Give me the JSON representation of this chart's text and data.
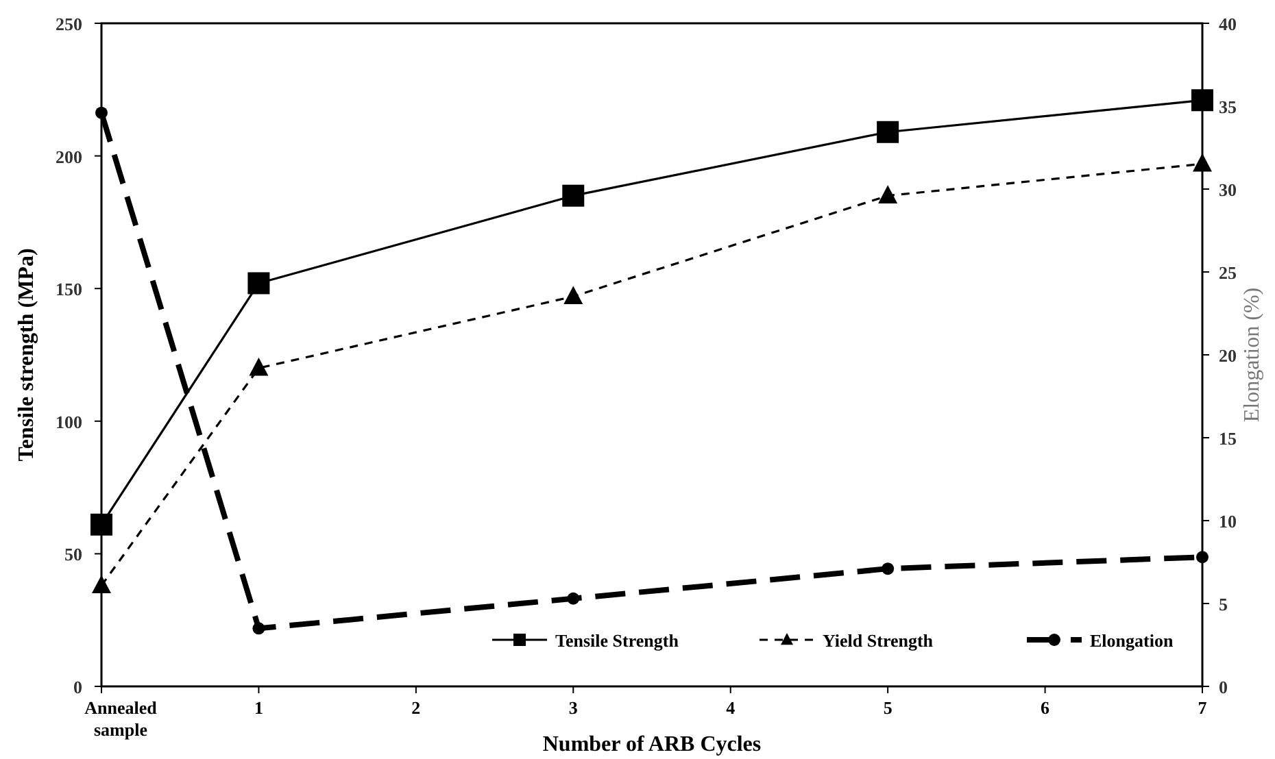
{
  "chart_data": {
    "type": "line",
    "xlabel": "Number of ARB Cycles",
    "ylabel": "Tensile strength (MPa)",
    "y2label": "Elongation (%)",
    "x": [
      0,
      1,
      3,
      5,
      7
    ],
    "xlim": [
      0,
      7
    ],
    "xticks": [
      {
        "value": 0,
        "label": "Annealed sample"
      },
      1,
      2,
      3,
      4,
      5,
      6,
      7
    ],
    "ylim": [
      0,
      250
    ],
    "yticks": [
      0,
      50,
      100,
      150,
      200,
      250
    ],
    "y2lim": [
      0,
      40
    ],
    "y2ticks": [
      0,
      5,
      10,
      15,
      20,
      25,
      30,
      35,
      40
    ],
    "series": [
      {
        "name": "Tensile Strength",
        "color": "#000000",
        "values": [
          61,
          152,
          185,
          209,
          221
        ],
        "marker": "square",
        "line_style": "solid"
      },
      {
        "name": "Yield Strength",
        "color": "#000000",
        "values": [
          38,
          120,
          147,
          185,
          197
        ],
        "marker": "triangle",
        "line_style": "dashed"
      },
      {
        "name": "Elongation",
        "color": "#000000",
        "values": [
          34.6,
          3.5,
          5.3,
          7.1,
          7.8
        ],
        "marker": "circle",
        "line_style": "dashed",
        "axis": "y2"
      }
    ],
    "legend": "bottom",
    "grid": false
  }
}
